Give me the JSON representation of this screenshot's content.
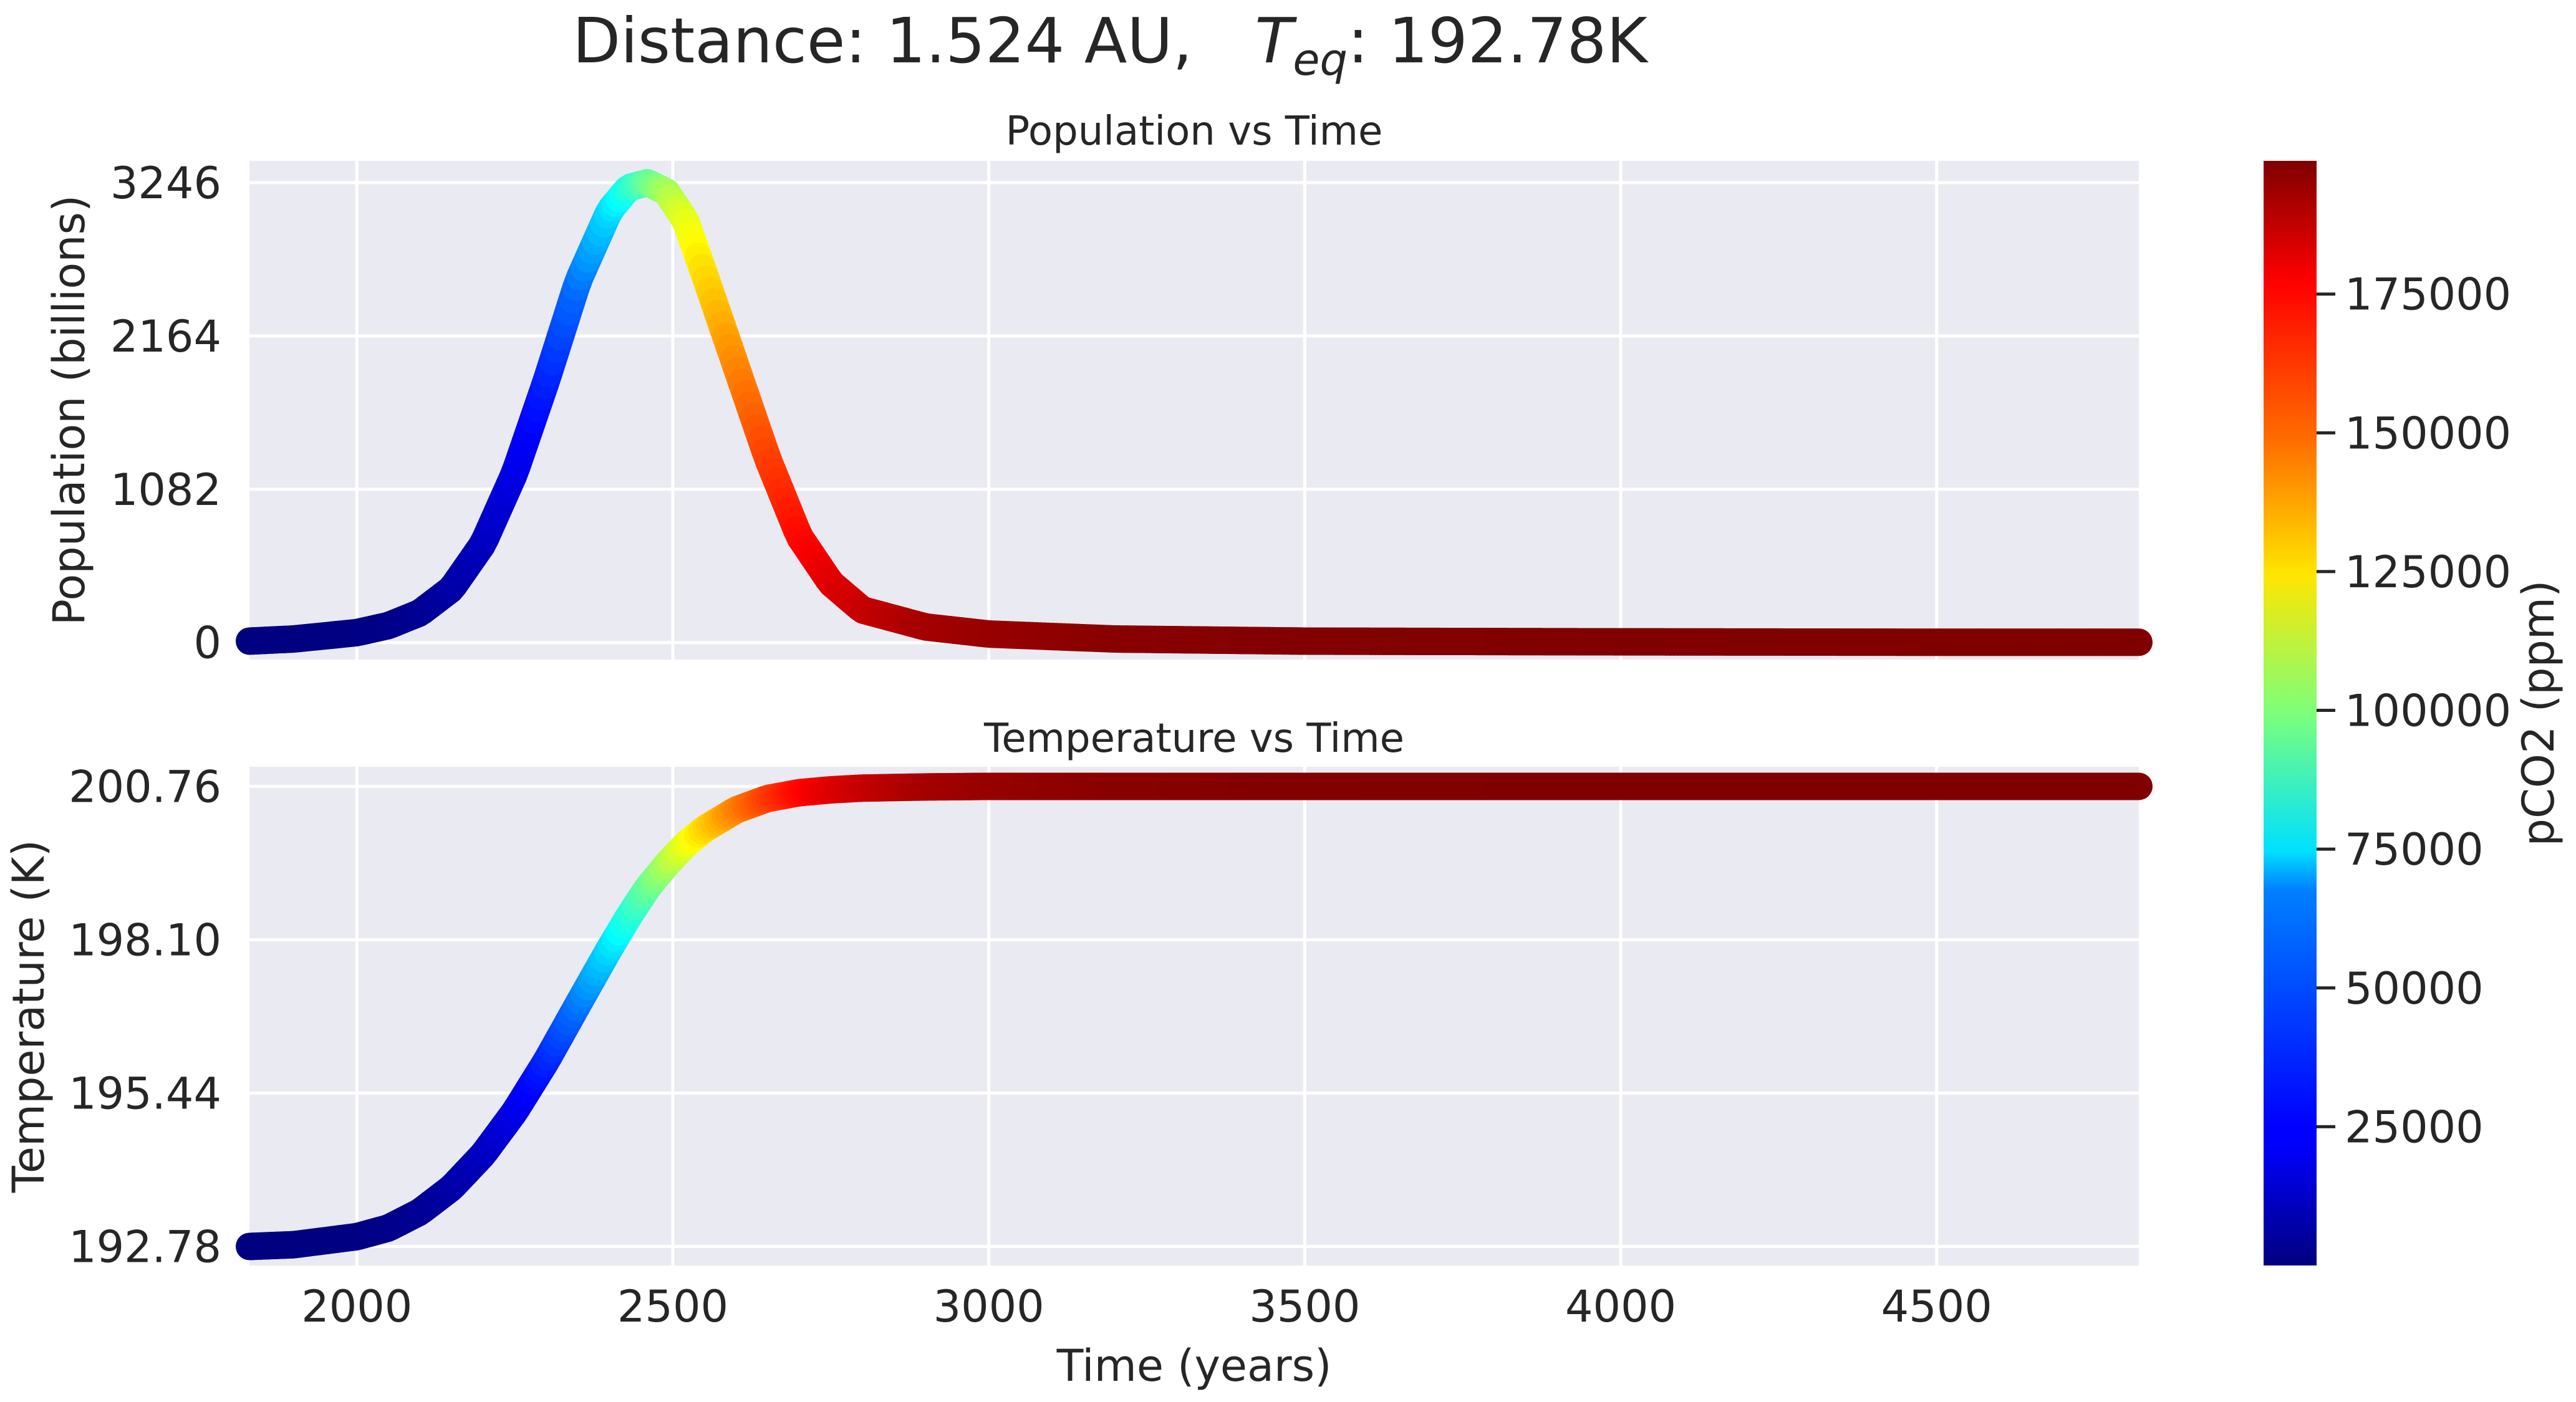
{
  "figure": {
    "title_prefix": "Distance: 1.524 AU,",
    "title_teq_symbol": "T",
    "title_teq_subscript": "eq",
    "title_teq_value": ": 192.78K"
  },
  "colors": {
    "panel_background": "#eaeaf2",
    "grid": "#ffffff",
    "text": "#262626",
    "colormap": "jet"
  },
  "chart_data": [
    {
      "type": "line",
      "title": "Population vs Time",
      "xlabel": "",
      "ylabel": "Population (billions)",
      "xlim": [
        1830,
        4820
      ],
      "ylim": [
        -120,
        3400
      ],
      "yticks": [
        0,
        1082,
        2164,
        3246
      ],
      "ytick_labels": [
        "0",
        "1082",
        "2164",
        "3246"
      ],
      "xticks": [
        2000,
        2500,
        3000,
        3500,
        4000,
        4500
      ],
      "xtick_labels": [],
      "grid": true,
      "color_by": "pCO2 (ppm)",
      "series": [
        {
          "x": [
            1830,
            1900,
            2000,
            2050,
            2100,
            2150,
            2200,
            2250,
            2300,
            2350,
            2400,
            2430,
            2460,
            2490,
            2520,
            2550,
            2600,
            2650,
            2700,
            2750,
            2800,
            2900,
            3000,
            3200,
            3500,
            4000,
            4500,
            4820
          ],
          "y": [
            10,
            25,
            70,
            120,
            210,
            380,
            700,
            1200,
            1850,
            2550,
            3050,
            3210,
            3246,
            3180,
            2980,
            2600,
            1950,
            1300,
            750,
            420,
            230,
            110,
            60,
            25,
            10,
            5,
            2,
            2
          ],
          "pco2": [
            0,
            100,
            600,
            1500,
            3200,
            6300,
            11200,
            18600,
            29400,
            44800,
            65000,
            78000,
            91000,
            104000,
            117000,
            129000,
            146000,
            160000,
            171000,
            179000,
            184000,
            191000,
            194000,
            197000,
            198500,
            199000,
            199000,
            199000
          ]
        }
      ]
    },
    {
      "type": "line",
      "title": "Temperature vs Time",
      "xlabel": "Time (years)",
      "ylabel": "Temperature (K)",
      "xlim": [
        1830,
        4820
      ],
      "ylim": [
        192.45,
        201.1
      ],
      "yticks": [
        192.78,
        195.44,
        198.1,
        200.76
      ],
      "ytick_labels": [
        "192.78",
        "195.44",
        "198.10",
        "200.76"
      ],
      "xticks": [
        2000,
        2500,
        3000,
        3500,
        4000,
        4500
      ],
      "xtick_labels": [
        "2000",
        "2500",
        "3000",
        "3500",
        "4000",
        "4500"
      ],
      "grid": true,
      "color_by": "pCO2 (ppm)",
      "series": [
        {
          "x": [
            1830,
            1900,
            2000,
            2050,
            2100,
            2150,
            2200,
            2250,
            2300,
            2350,
            2400,
            2430,
            2460,
            2490,
            2520,
            2550,
            2600,
            2650,
            2700,
            2750,
            2800,
            2900,
            3000,
            3200,
            3500,
            4000,
            4500,
            4820
          ],
          "y": [
            192.78,
            192.81,
            192.95,
            193.1,
            193.38,
            193.8,
            194.38,
            195.12,
            196.0,
            196.98,
            197.95,
            198.5,
            199.0,
            199.4,
            199.75,
            200.02,
            200.35,
            200.55,
            200.65,
            200.7,
            200.73,
            200.75,
            200.76,
            200.76,
            200.76,
            200.76,
            200.76,
            200.76
          ],
          "pco2": [
            0,
            100,
            600,
            1500,
            3200,
            6300,
            11200,
            18600,
            29400,
            44800,
            65000,
            78000,
            91000,
            104000,
            117000,
            129000,
            146000,
            160000,
            171000,
            179000,
            184000,
            191000,
            194000,
            197000,
            198500,
            199000,
            199000,
            199000
          ]
        }
      ]
    },
    {
      "type": "heatmap",
      "title": "",
      "label": "pCO2 (ppm)",
      "colormap": "jet",
      "range": [
        0,
        199000
      ],
      "ticks": [
        25000,
        50000,
        75000,
        100000,
        125000,
        150000,
        175000
      ],
      "tick_labels": [
        "25000",
        "50000",
        "75000",
        "100000",
        "125000",
        "150000",
        "175000"
      ]
    }
  ]
}
